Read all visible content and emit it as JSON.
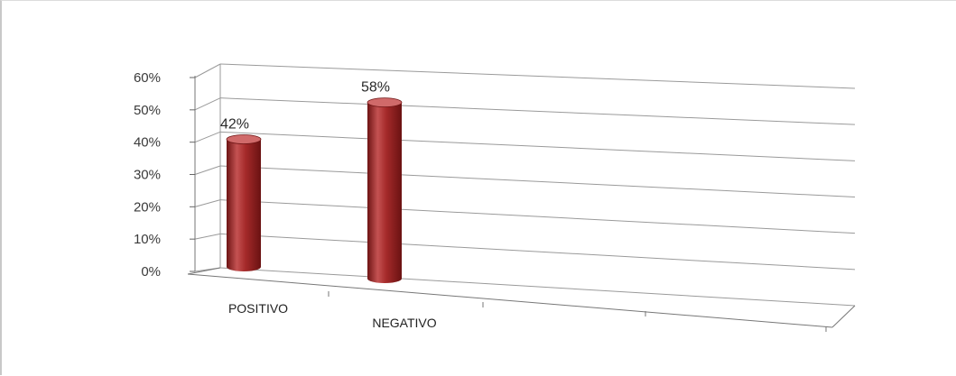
{
  "chart_data": {
    "type": "bar",
    "style": "3d-cylinder",
    "categories": [
      "POSITIVO",
      "NEGATIVO"
    ],
    "values": [
      42,
      58
    ],
    "data_labels": [
      "42%",
      "58%"
    ],
    "y_ticks": [
      "0%",
      "10%",
      "20%",
      "30%",
      "40%",
      "50%",
      "60%"
    ],
    "ylim": [
      0,
      60
    ],
    "grid": true,
    "legend": "none",
    "colors": {
      "bar": "#a52a2a",
      "bar_dark": "#6e1414",
      "bar_light": "#d06a6a",
      "grid": "#9a9a9a"
    }
  }
}
